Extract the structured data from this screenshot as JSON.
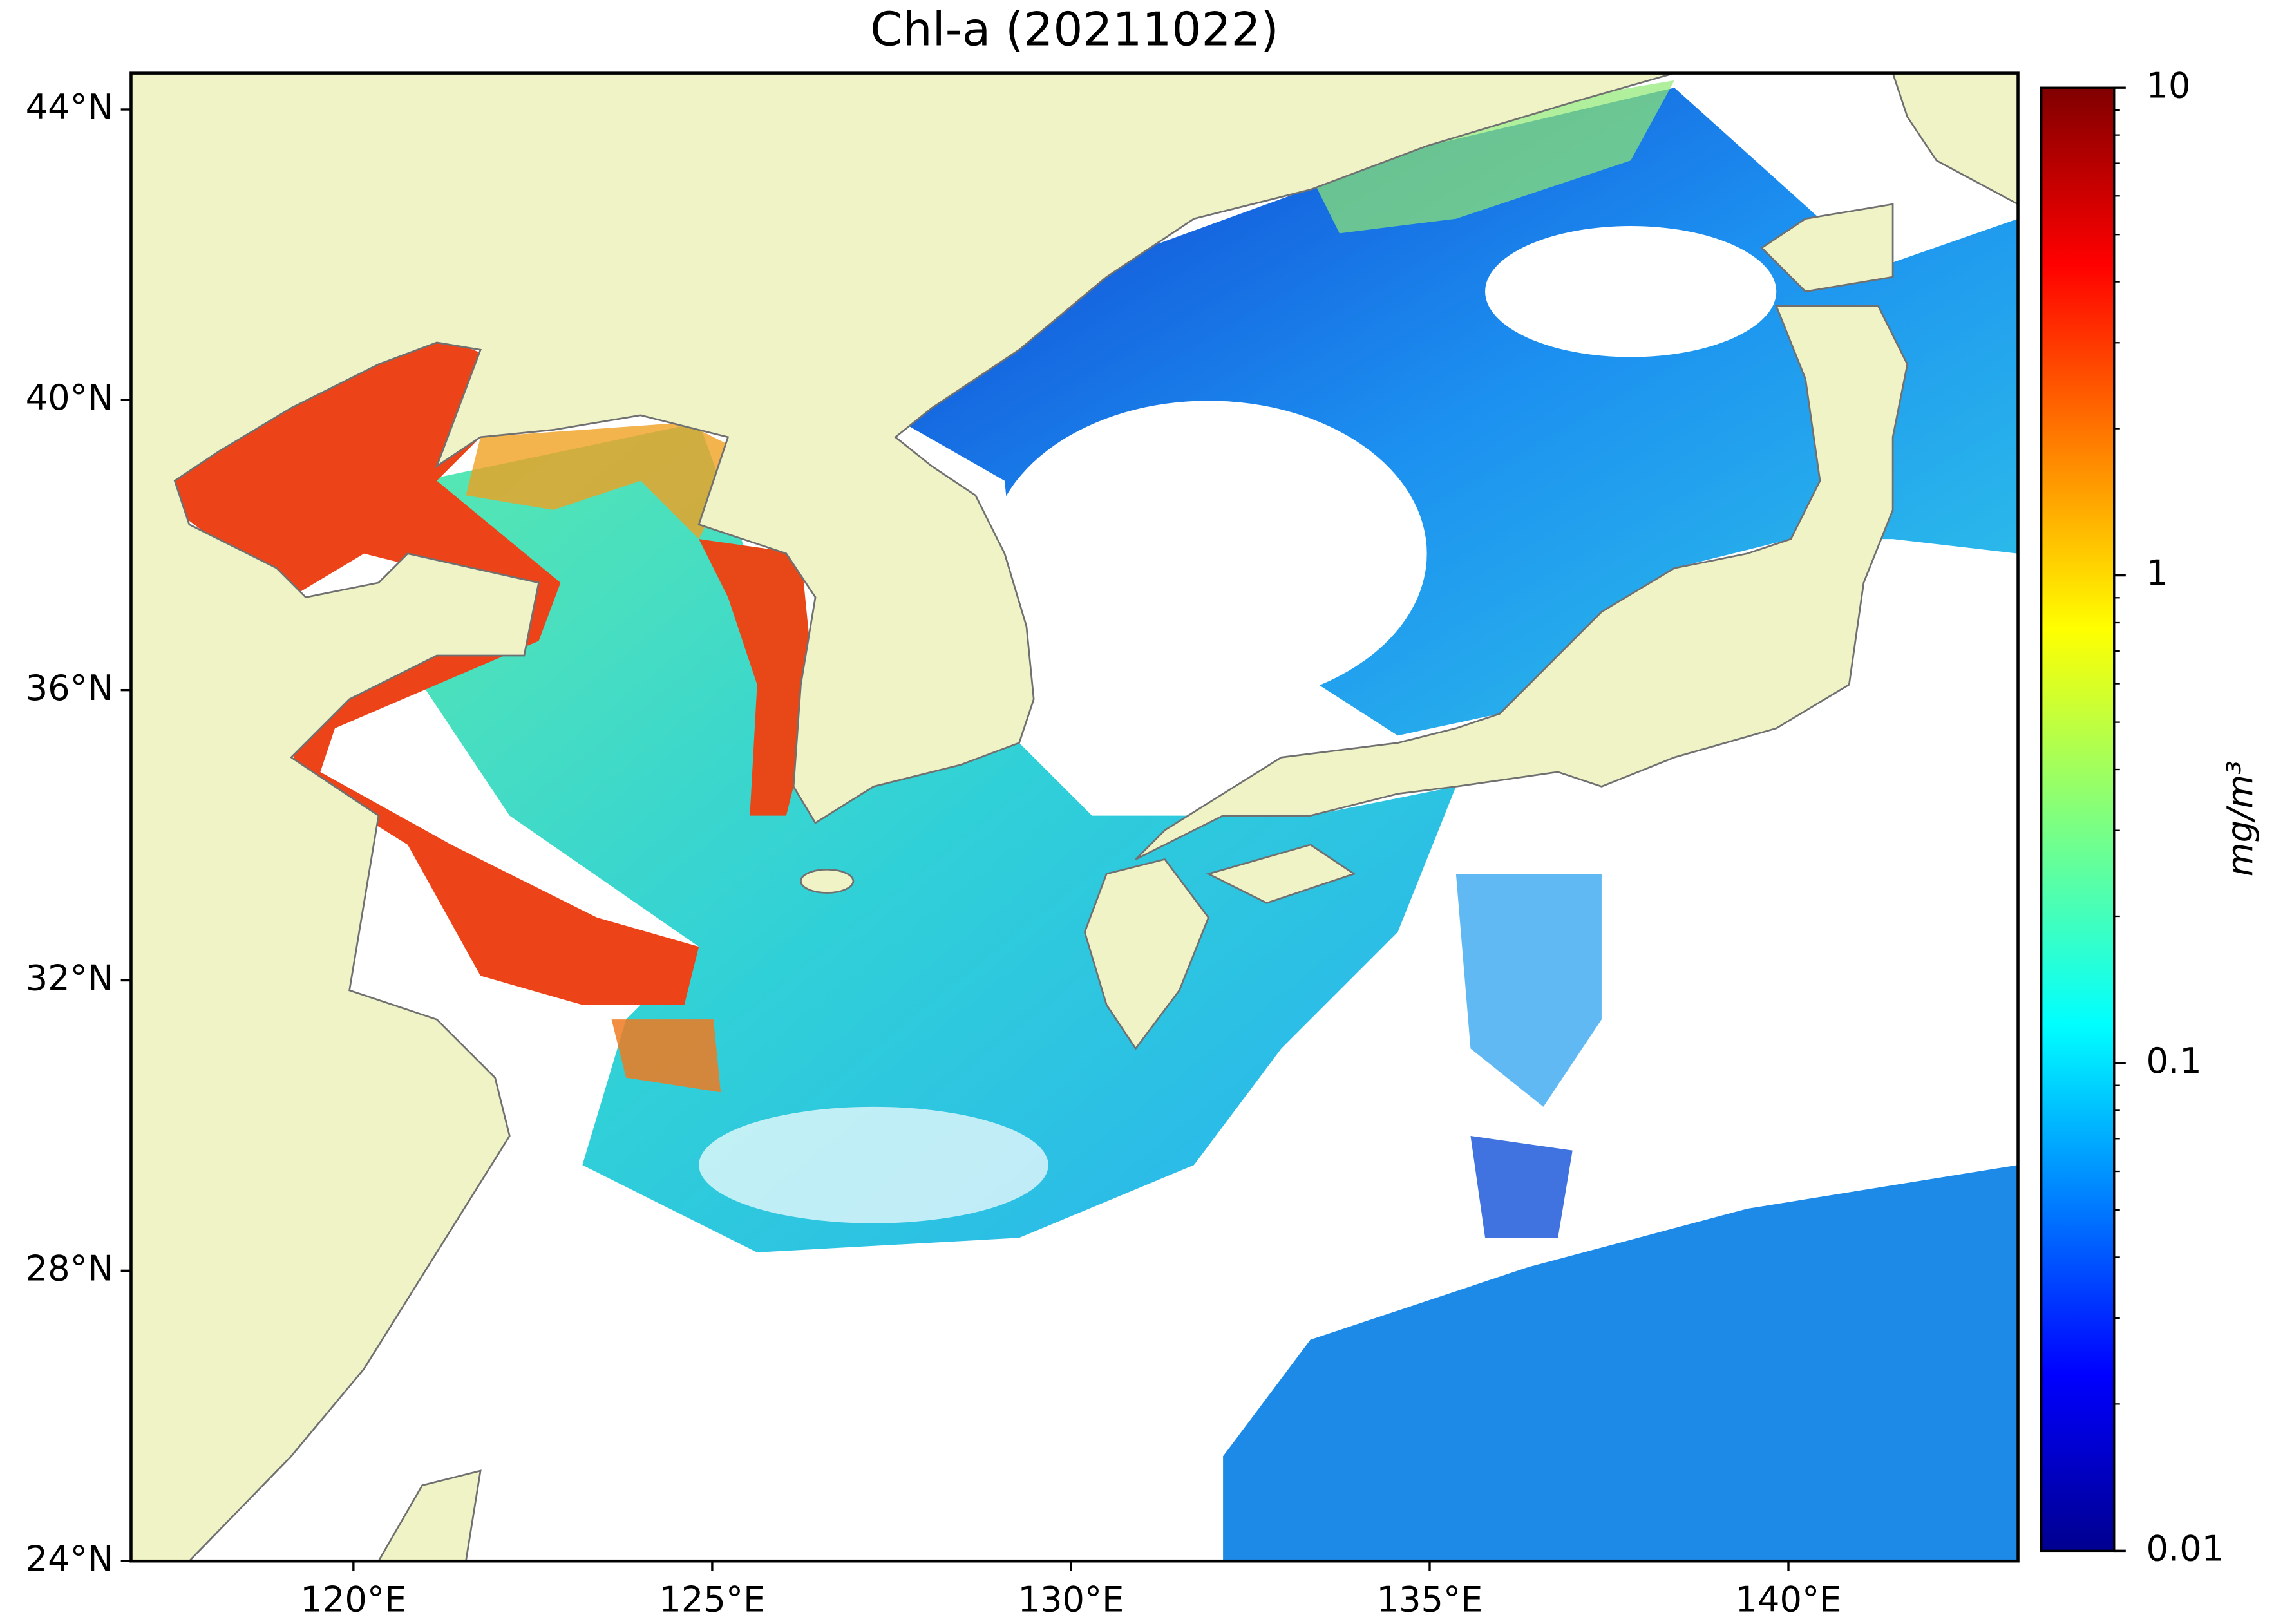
{
  "title": "Chl-a (20211022)",
  "map": {
    "xlim": [
      116.9,
      143.2
    ],
    "ylim": [
      24,
      44.5
    ],
    "xticks": [
      {
        "value": 120,
        "label": "120°E"
      },
      {
        "value": 125,
        "label": "125°E"
      },
      {
        "value": 130,
        "label": "130°E"
      },
      {
        "value": 135,
        "label": "135°E"
      },
      {
        "value": 140,
        "label": "140°E"
      }
    ],
    "yticks": [
      {
        "value": 24,
        "label": "24°N"
      },
      {
        "value": 28,
        "label": "28°N"
      },
      {
        "value": 32,
        "label": "32°N"
      },
      {
        "value": 36,
        "label": "36°N"
      },
      {
        "value": 40,
        "label": "40°N"
      },
      {
        "value": 44,
        "label": "44°N"
      }
    ]
  },
  "colorbar": {
    "label": "mg/m³",
    "scale": "log",
    "lim": [
      0.01,
      10
    ],
    "ticks": [
      0.01,
      0.1,
      1,
      10
    ],
    "minor_ticks": [
      0.02,
      0.03,
      0.04,
      0.05,
      0.06,
      0.07,
      0.08,
      0.09,
      0.2,
      0.3,
      0.4,
      0.5,
      0.6,
      0.7,
      0.8,
      0.9,
      2,
      3,
      4,
      5,
      6,
      7,
      8,
      9
    ]
  }
}
